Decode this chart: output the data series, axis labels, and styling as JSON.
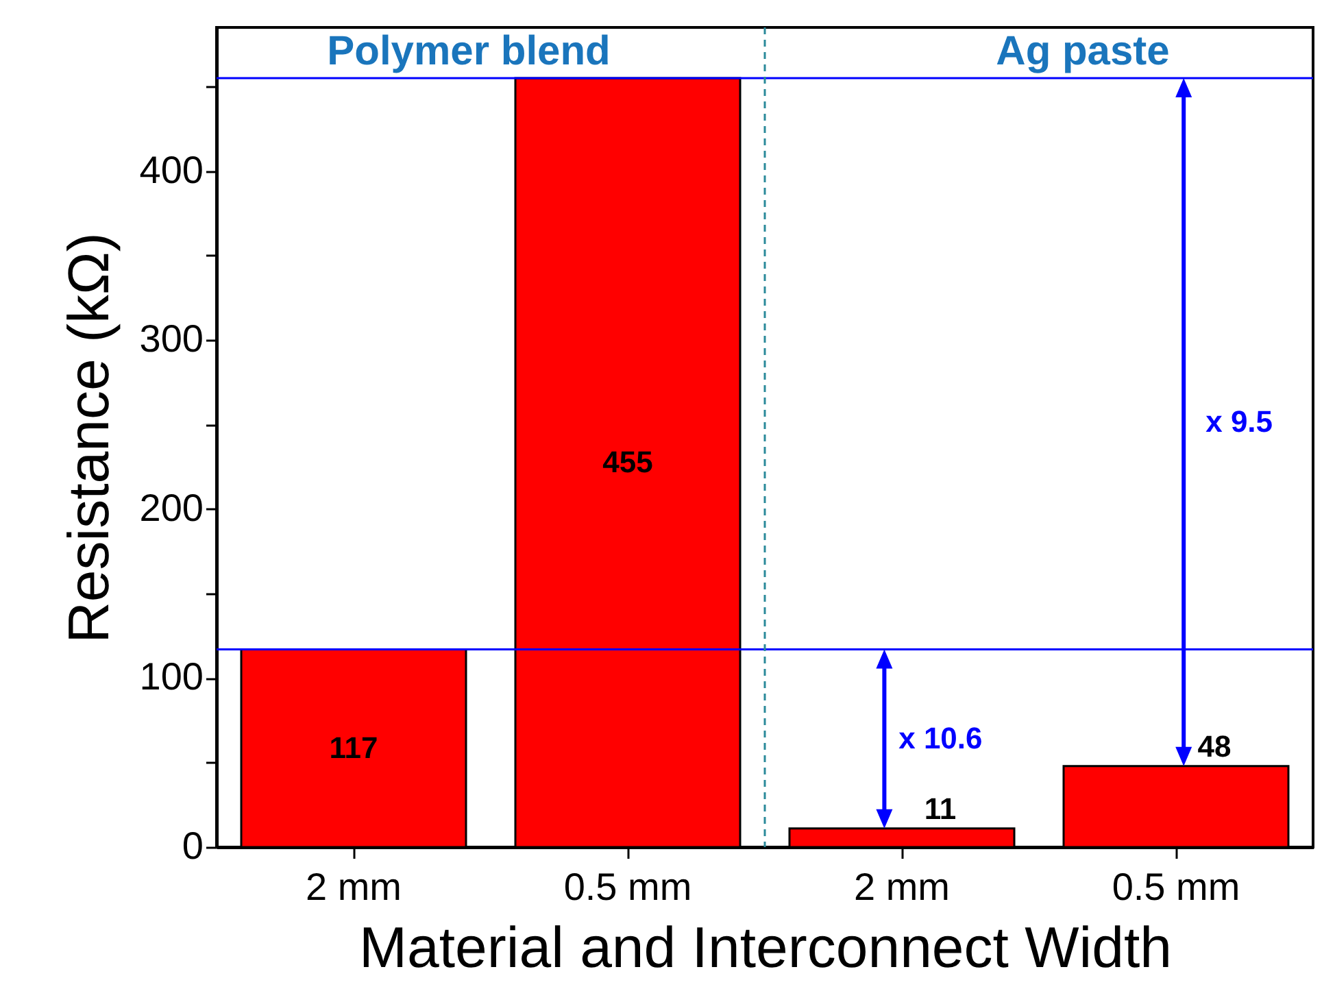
{
  "chart_data": {
    "type": "bar",
    "xlabel": "Material and Interconnect Width",
    "ylabel": "Resistance (kΩ)",
    "categories": [
      "2 mm",
      "0.5 mm",
      "2 mm",
      "0.5 mm"
    ],
    "values": [
      117,
      455,
      11,
      48
    ],
    "color": "#ff0000",
    "data_labels": true,
    "ylim": [
      0,
      485
    ],
    "yticks": [
      0,
      {
        "value": 50,
        "label": null
      },
      100,
      {
        "value": 150,
        "label": null
      },
      200,
      {
        "value": 250,
        "label": null
      },
      300,
      {
        "value": 350,
        "label": null
      },
      400,
      {
        "value": 450,
        "label": null
      }
    ],
    "grid": false,
    "ref_lines": [
      {
        "axis": "y",
        "value": 117,
        "color": "#0000ff",
        "line_style": "solid"
      },
      {
        "axis": "y",
        "value": 455,
        "color": "#0000ff",
        "line_style": "solid"
      }
    ],
    "annotations": [
      "Polymer blend",
      "Ag paste",
      "x 10.6",
      "x 9.5"
    ]
  }
}
